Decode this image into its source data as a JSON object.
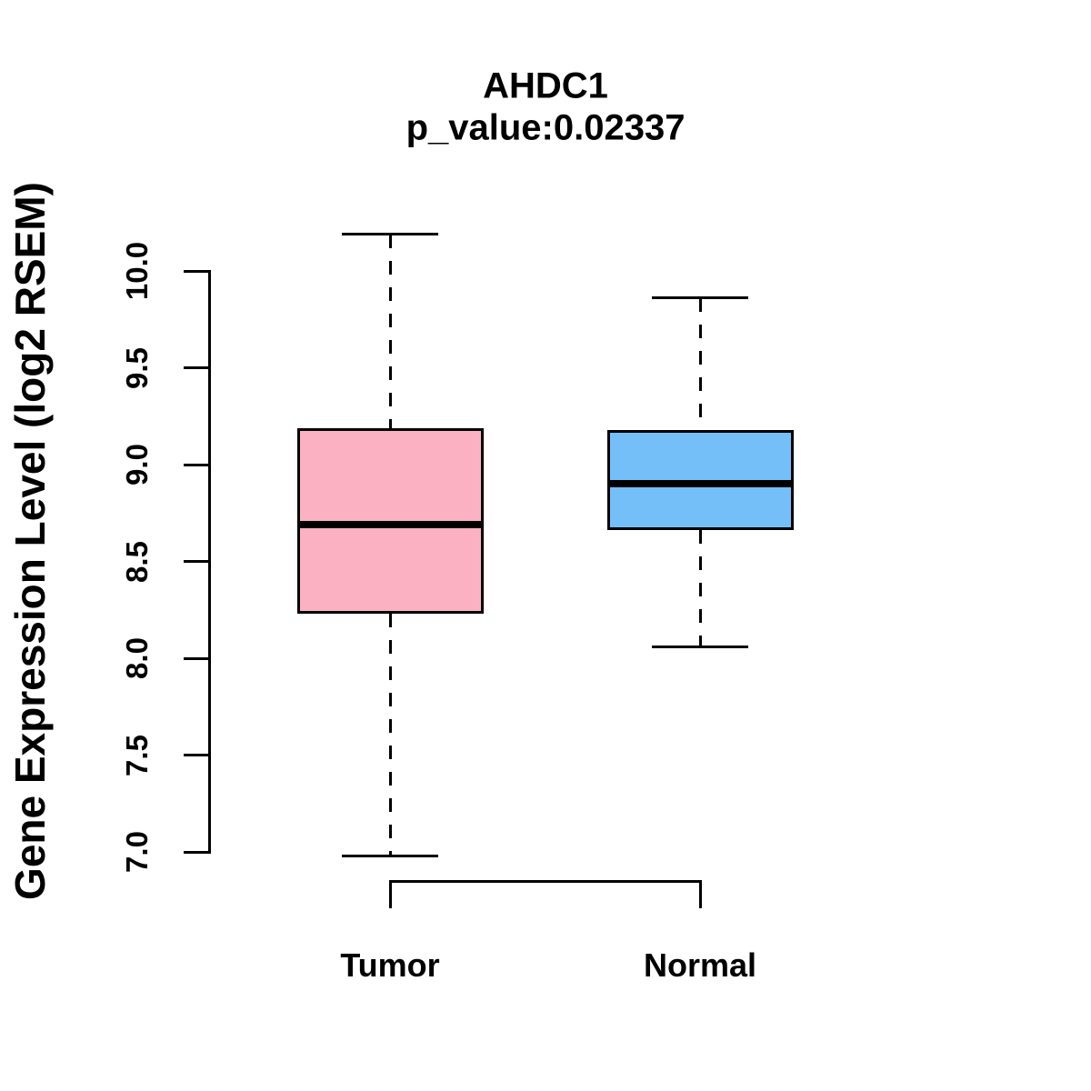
{
  "chart_data": {
    "type": "boxplot",
    "title": "AHDC1",
    "subtitle": "p_value:0.02337",
    "ylabel": "Gene Expression Level (log2 RSEM)",
    "xlabel": "",
    "ylim": [
      6.9,
      10.2
    ],
    "grid": false,
    "legend": "none",
    "yticks": [
      {
        "value": 7.0,
        "label": "7.0"
      },
      {
        "value": 7.5,
        "label": "7.5"
      },
      {
        "value": 8.0,
        "label": "8.0"
      },
      {
        "value": 8.5,
        "label": "8.5"
      },
      {
        "value": 9.0,
        "label": "9.0"
      },
      {
        "value": 9.5,
        "label": "9.5"
      },
      {
        "value": 10.0,
        "label": "10.0"
      }
    ],
    "categories": [
      "Tumor",
      "Normal"
    ],
    "series": [
      {
        "name": "Tumor",
        "color": "#FCB1C2",
        "whisker_low": 6.98,
        "q1": 8.23,
        "median": 8.69,
        "q3": 9.19,
        "whisker_high": 10.19
      },
      {
        "name": "Normal",
        "color": "#75BFF8",
        "whisker_low": 8.06,
        "q1": 8.66,
        "median": 8.9,
        "q3": 9.18,
        "whisker_high": 9.86
      }
    ],
    "colors": {
      "axis": "#000000",
      "box_border": "#000000",
      "median_line": "#000000",
      "background": "#ffffff"
    }
  }
}
